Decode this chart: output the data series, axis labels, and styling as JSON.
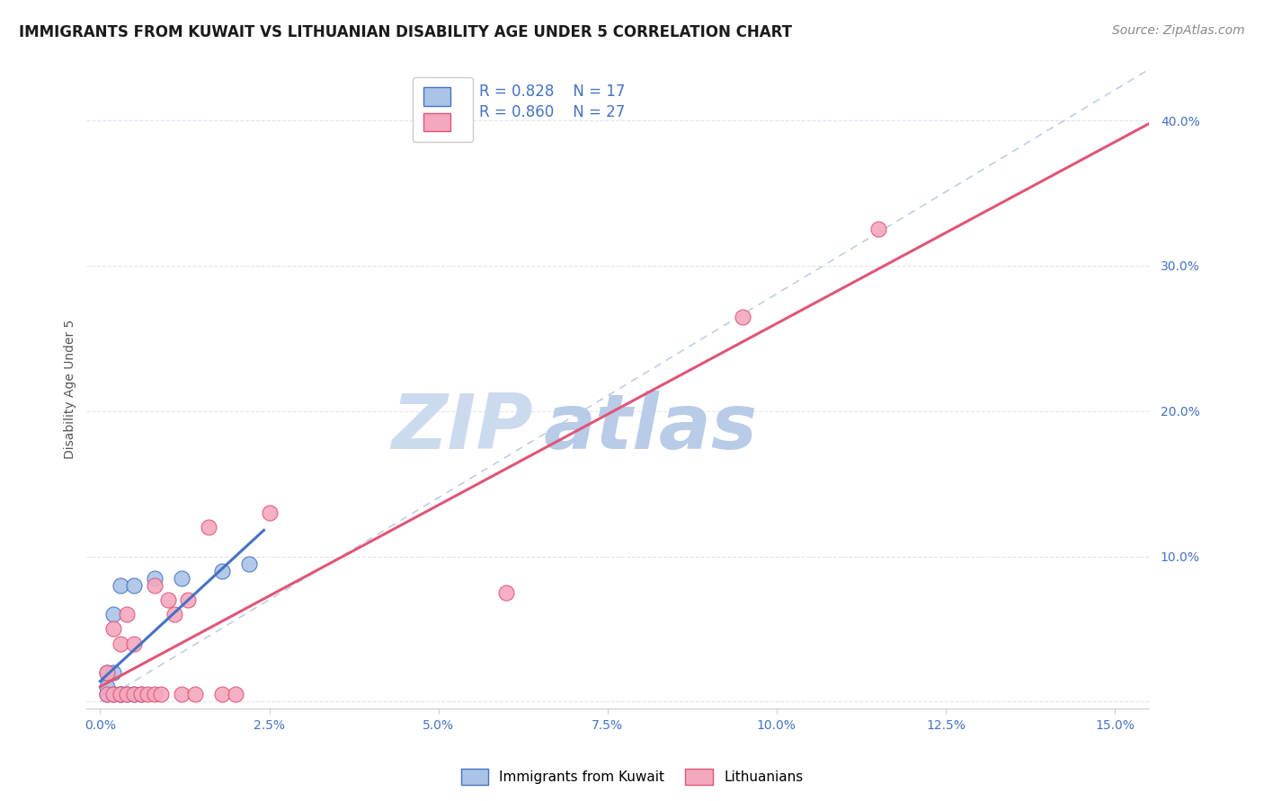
{
  "title": "IMMIGRANTS FROM KUWAIT VS LITHUANIAN DISABILITY AGE UNDER 5 CORRELATION CHART",
  "source": "Source: ZipAtlas.com",
  "ylabel": "Disability Age Under 5",
  "blue_R": "0.828",
  "blue_N": "17",
  "pink_R": "0.860",
  "pink_N": "27",
  "blue_color": "#aac4e8",
  "blue_line_color": "#4472c4",
  "pink_color": "#f4a8be",
  "pink_line_color": "#e05578",
  "diagonal_color": "#c0cfe0",
  "watermark_zip_color": "#ccdaf0",
  "watermark_atlas_color": "#b8cce8",
  "xticks": [
    0.0,
    0.025,
    0.05,
    0.075,
    0.1,
    0.125,
    0.15
  ],
  "yticks": [
    0.0,
    0.1,
    0.2,
    0.3,
    0.4
  ],
  "xlim": [
    -0.002,
    0.155
  ],
  "ylim": [
    -0.005,
    0.435
  ],
  "blue_points_x": [
    0.001,
    0.001,
    0.001,
    0.002,
    0.002,
    0.002,
    0.003,
    0.003,
    0.003,
    0.004,
    0.005,
    0.005,
    0.006,
    0.008,
    0.012,
    0.018,
    0.022
  ],
  "blue_points_y": [
    0.005,
    0.01,
    0.02,
    0.005,
    0.02,
    0.06,
    0.005,
    0.005,
    0.08,
    0.005,
    0.005,
    0.08,
    0.005,
    0.085,
    0.085,
    0.09,
    0.095
  ],
  "pink_points_x": [
    0.001,
    0.001,
    0.002,
    0.002,
    0.003,
    0.003,
    0.004,
    0.004,
    0.005,
    0.005,
    0.006,
    0.007,
    0.008,
    0.008,
    0.009,
    0.01,
    0.011,
    0.012,
    0.013,
    0.014,
    0.016,
    0.018,
    0.02,
    0.025,
    0.06,
    0.095,
    0.115
  ],
  "pink_points_y": [
    0.005,
    0.02,
    0.005,
    0.05,
    0.005,
    0.04,
    0.005,
    0.06,
    0.005,
    0.04,
    0.005,
    0.005,
    0.005,
    0.08,
    0.005,
    0.07,
    0.06,
    0.005,
    0.07,
    0.005,
    0.12,
    0.005,
    0.005,
    0.13,
    0.075,
    0.265,
    0.325
  ],
  "title_fontsize": 12,
  "source_fontsize": 10,
  "legend_fontsize": 12,
  "tick_color": "#4472c4",
  "axis_color": "#cccccc",
  "grid_color": "#dde6f0",
  "background_color": "#ffffff"
}
